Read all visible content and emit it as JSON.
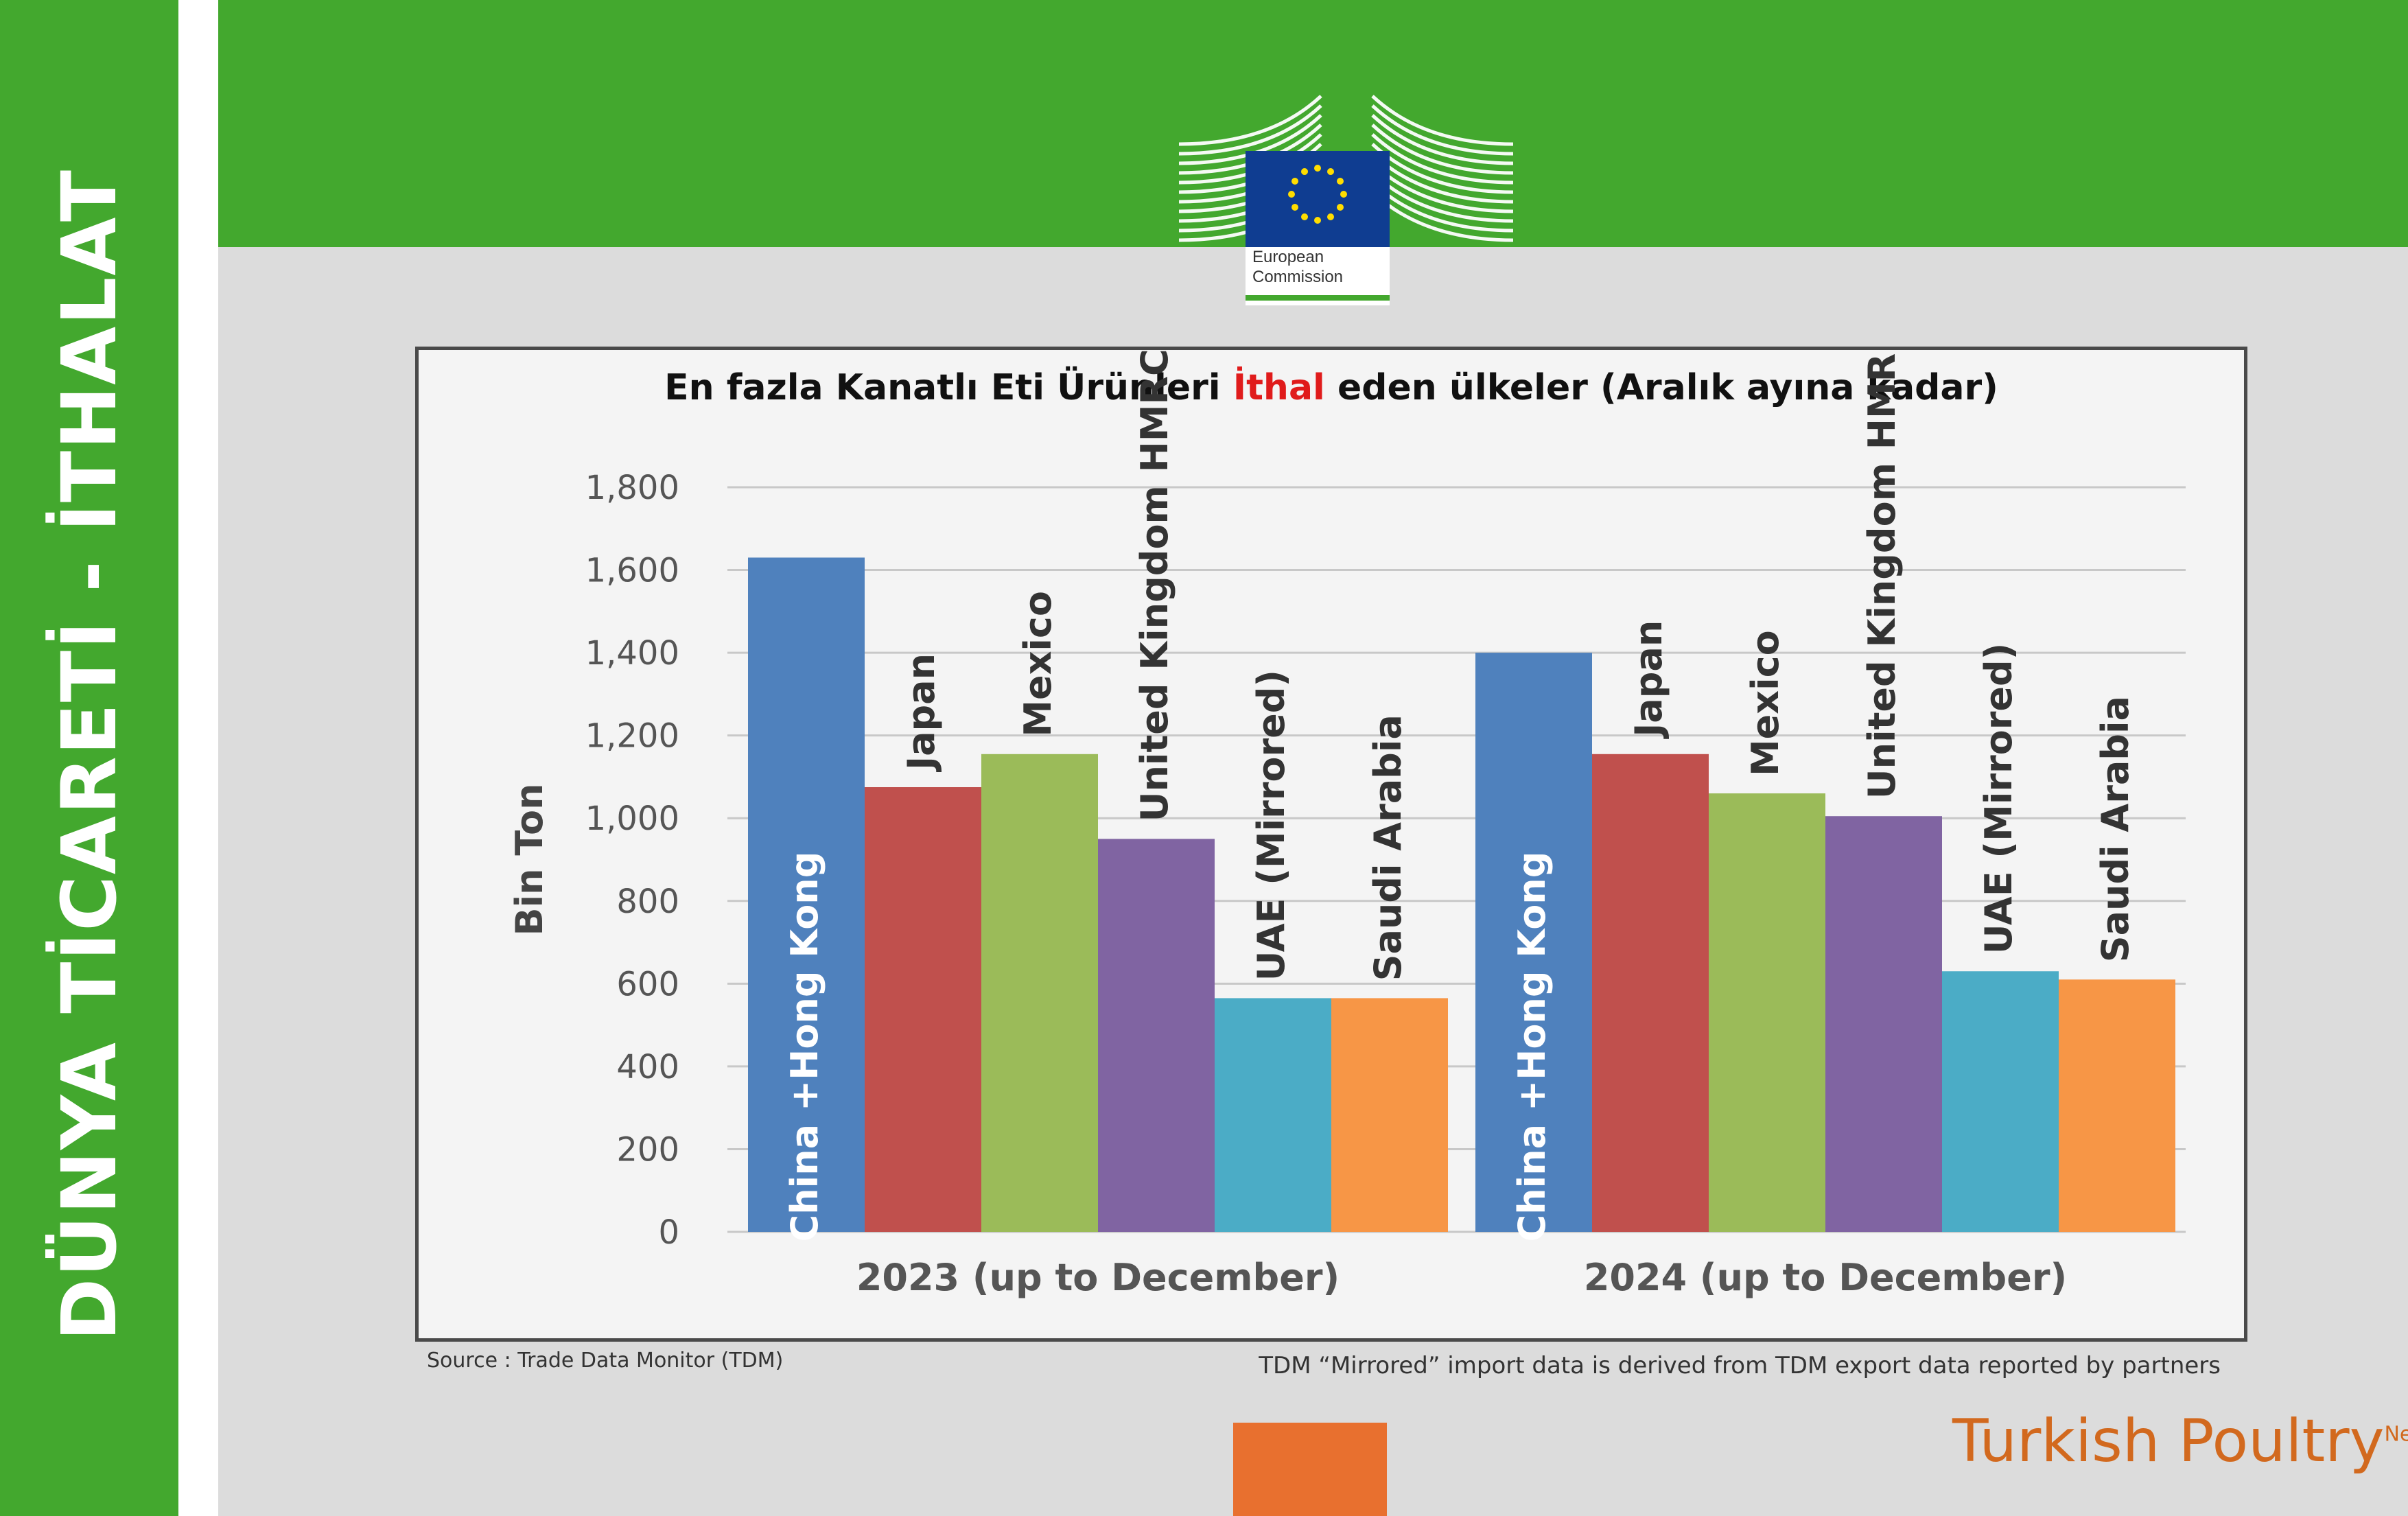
{
  "sidebar": {
    "title": "DÜNYA TİCARETİ - İTHALAT"
  },
  "logo": {
    "line1": "European",
    "line2": "Commission"
  },
  "colors": {
    "green": "#43a82e",
    "panel_bg": "#dcdcdc",
    "title_highlight": "#e01b1b",
    "accent_orange": "#e8702f"
  },
  "chart": {
    "title_before": "En fazla Kanatlı Eti Ürünleri ",
    "title_highlight": "İthal",
    "title_after": " eden ülkeler (Aralık ayına kadar)"
  },
  "chart_data": {
    "type": "bar",
    "ylabel": "Bin Ton",
    "ylim": [
      0,
      1800
    ],
    "yticks": [
      "0",
      "200",
      "400",
      "600",
      "800",
      "1,000",
      "1,200",
      "1,400",
      "1,600",
      "1,800"
    ],
    "grid": true,
    "groups": [
      {
        "label": "2023 (up to December)",
        "bars": [
          {
            "label": "China +Hong Kong",
            "value": 1630
          },
          {
            "label": "Japan",
            "value": 1075
          },
          {
            "label": "Mexico",
            "value": 1155
          },
          {
            "label": "United Kingdom HMRC",
            "value": 950
          },
          {
            "label": "UAE (Mirrored)",
            "value": 565
          },
          {
            "label": "Saudi Arabia",
            "value": 565
          }
        ]
      },
      {
        "label": "2024 (up to December)",
        "bars": [
          {
            "label": "China +Hong Kong",
            "value": 1400
          },
          {
            "label": "Japan",
            "value": 1155
          },
          {
            "label": "Mexico",
            "value": 1060
          },
          {
            "label": "United Kingdom HMR",
            "value": 1005
          },
          {
            "label": "UAE (Mirrored)",
            "value": 630
          },
          {
            "label": "Saudi Arabia",
            "value": 610
          }
        ]
      }
    ],
    "bar_colors": [
      "#4f81bd",
      "#c0504d",
      "#9bbb59",
      "#8064a2",
      "#4bacc6",
      "#f79646"
    ]
  },
  "footer": {
    "source": "Source : Trade Data Monitor (TDM)",
    "mirror_note": "TDM “Mirrored” import data is derived from TDM export data reported by partners",
    "brand_main": "Turkish Poultry",
    "brand_net": "Net"
  }
}
